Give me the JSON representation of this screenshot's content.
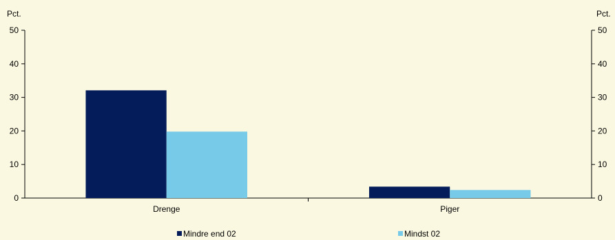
{
  "chart_data": {
    "type": "bar",
    "categories": [
      "Drenge",
      "Piger"
    ],
    "series": [
      {
        "name": "Mindre end 02",
        "values": [
          32.1,
          3.4
        ],
        "color": "#041c5a"
      },
      {
        "name": "Mindst 02",
        "values": [
          19.8,
          2.4
        ],
        "color": "#78cbe8"
      }
    ],
    "ylabel_left": "Pct.",
    "ylabel_right": "Pct.",
    "ylim": [
      0,
      50
    ],
    "yticks": [
      0,
      10,
      20,
      30,
      40,
      50
    ],
    "grid": false,
    "legend_position": "bottom"
  },
  "colors": {
    "background": "#faf8e0",
    "axis": "#000000"
  }
}
